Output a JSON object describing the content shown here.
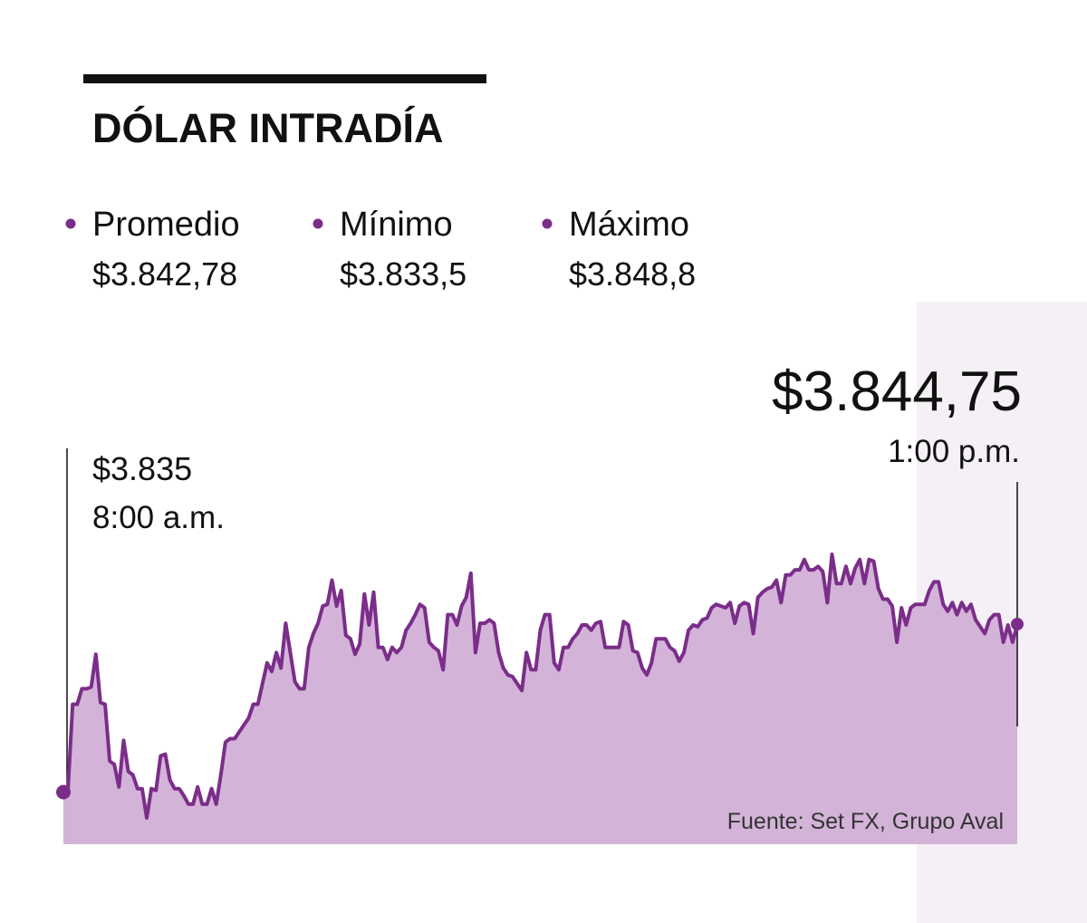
{
  "chart_data": {
    "type": "area",
    "title": "DÓLAR INTRADÍA",
    "stats": [
      {
        "label": "Promedio",
        "value": "$3.842,78"
      },
      {
        "label": "Mínimo",
        "value": "$3.833,5"
      },
      {
        "label": "Máximo",
        "value": "$3.848,8"
      }
    ],
    "annotations": [
      {
        "value": "$3.835",
        "time": "8:00 a.m."
      },
      {
        "value": "$3.844,75",
        "time": "1:00 p.m."
      }
    ],
    "source": "Fuente: Set FX, Grupo Aval",
    "color": "#7b2d8a",
    "fill_color": "#d3b4d8",
    "values": [
      3835,
      3835.2,
      3840.1,
      3840.1,
      3841.0,
      3841.0,
      3841.1,
      3843.0,
      3840.2,
      3840.1,
      3836.8,
      3836.6,
      3835.3,
      3838.0,
      3836.2,
      3836.0,
      3835.2,
      3835.2,
      3833.5,
      3835.2,
      3835.1,
      3837.1,
      3837.2,
      3835.7,
      3835.2,
      3835.2,
      3834.8,
      3834.3,
      3834.3,
      3835.3,
      3834.3,
      3834.3,
      3835.2,
      3834.3,
      3836.0,
      3837.9,
      3838.1,
      3838.1,
      3838.5,
      3838.9,
      3839.3,
      3840.1,
      3840.1,
      3841.3,
      3842.5,
      3842.0,
      3843.1,
      3842.2,
      3844.8,
      3843.1,
      3841.4,
      3841.0,
      3841.0,
      3843.4,
      3844.2,
      3844.8,
      3845.8,
      3845.9,
      3847.3,
      3845.8,
      3846.7,
      3844.1,
      3843.9,
      3843.0,
      3843.6,
      3846.5,
      3844.7,
      3846.6,
      3843.4,
      3843.4,
      3842.7,
      3843.4,
      3843.1,
      3843.4,
      3844.4,
      3844.8,
      3845.3,
      3845.9,
      3845.7,
      3843.7,
      3843.4,
      3843.2,
      3842.1,
      3845.3,
      3845.3,
      3844.7,
      3845.8,
      3846.3,
      3847.7,
      3843.1,
      3844.8,
      3844.8,
      3845.0,
      3844.8,
      3843.1,
      3842.2,
      3841.8,
      3841.7,
      3841.3,
      3840.9,
      3843.1,
      3842.1,
      3842.1,
      3844.4,
      3845.3,
      3845.3,
      3842.5,
      3842.1,
      3843.4,
      3843.4,
      3843.9,
      3844.2,
      3844.7,
      3844.7,
      3844.4,
      3844.8,
      3844.9,
      3843.4,
      3843.4,
      3843.4,
      3843.4,
      3844.9,
      3844.7,
      3843.2,
      3843.1,
      3842.2,
      3841.8,
      3842.5,
      3843.9,
      3843.9,
      3843.9,
      3843.4,
      3843.2,
      3842.6,
      3843.1,
      3844.4,
      3844.7,
      3844.6,
      3845.0,
      3845.1,
      3845.7,
      3845.9,
      3845.8,
      3845.7,
      3846.0,
      3844.8,
      3845.8,
      3846.0,
      3845.9,
      3844.2,
      3846.3,
      3846.6,
      3846.8,
      3846.9,
      3847.3,
      3846.0,
      3847.6,
      3847.6,
      3847.9,
      3847.9,
      3848.5,
      3847.9,
      3847.9,
      3848.1,
      3847.8,
      3846.0,
      3848.8,
      3847.1,
      3847.1,
      3848.1,
      3847.1,
      3848.0,
      3848.5,
      3847.1,
      3848.5,
      3848.4,
      3846.8,
      3846.2,
      3846.2,
      3845.8,
      3843.7,
      3845.7,
      3844.7,
      3845.7,
      3845.9,
      3845.9,
      3845.9,
      3846.7,
      3847.2,
      3847.2,
      3845.9,
      3845.5,
      3846.0,
      3845.3,
      3846.0,
      3845.5,
      3845.9,
      3845.0,
      3844.6,
      3844.2,
      3845.0,
      3845.3,
      3845.3,
      3843.7,
      3844.7,
      3843.7,
      3844.75
    ]
  }
}
